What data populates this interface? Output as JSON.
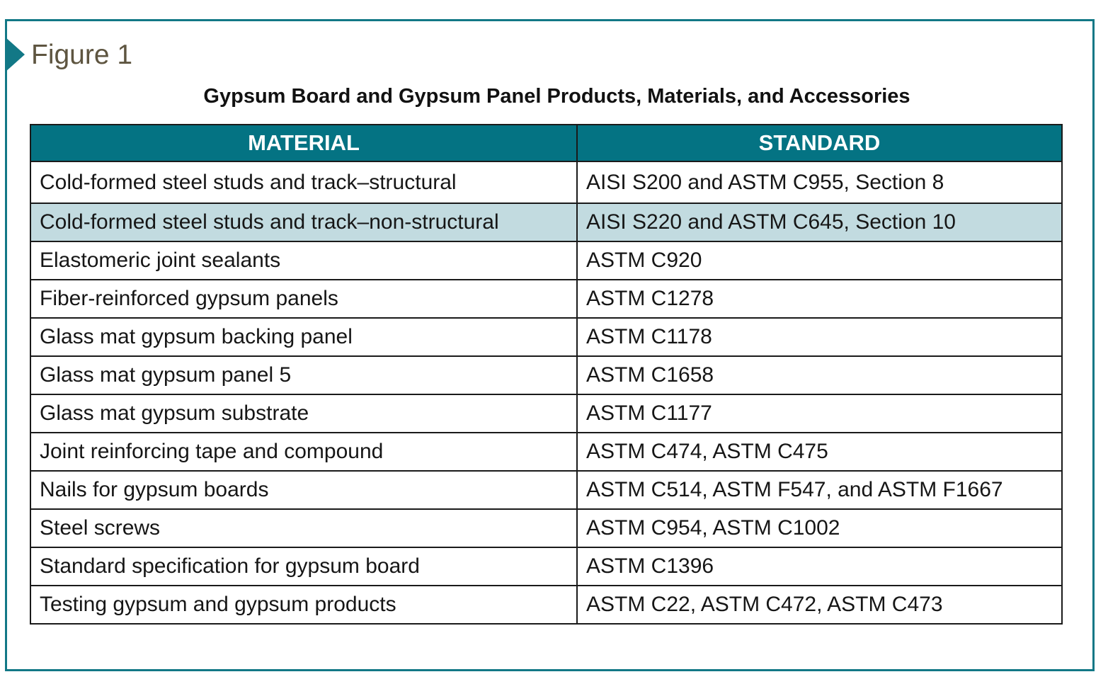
{
  "figure": {
    "label": "Figure 1",
    "title": "Gypsum Board and Gypsum Panel Products, Materials, and Accessories"
  },
  "colors": {
    "accent": "#127886",
    "header_fill": "#047383",
    "highlight_row": "#c2dbe0",
    "label_text": "#5e5540"
  },
  "table": {
    "headers": [
      "MATERIAL",
      "STANDARD"
    ],
    "rows": [
      {
        "material": "Cold-formed steel studs and track–structural",
        "standard": "AISI S200 and ASTM C955, Section 8"
      },
      {
        "material": "Cold-formed steel studs and track–non-structural",
        "standard": "AISI S220 and ASTM C645, Section 10"
      },
      {
        "material": "Elastomeric joint sealants",
        "standard": "ASTM C920"
      },
      {
        "material": "Fiber-reinforced gypsum panels",
        "standard": "ASTM C1278"
      },
      {
        "material": "Glass mat gypsum backing panel",
        "standard": "ASTM C1178"
      },
      {
        "material": "Glass mat gypsum panel 5",
        "standard": "ASTM C1658"
      },
      {
        "material": "Glass mat gypsum substrate",
        "standard": "ASTM C1177"
      },
      {
        "material": "Joint reinforcing tape and compound",
        "standard": "ASTM C474, ASTM C475"
      },
      {
        "material": "Nails for gypsum boards",
        "standard": "ASTM C514, ASTM F547, and ASTM F1667"
      },
      {
        "material": "Steel screws",
        "standard": "ASTM C954, ASTM C1002"
      },
      {
        "material": "Standard specification for gypsum board",
        "standard": "ASTM C1396"
      },
      {
        "material": "Testing gypsum and gypsum products",
        "standard": "ASTM C22, ASTM C472, ASTM C473"
      }
    ]
  }
}
